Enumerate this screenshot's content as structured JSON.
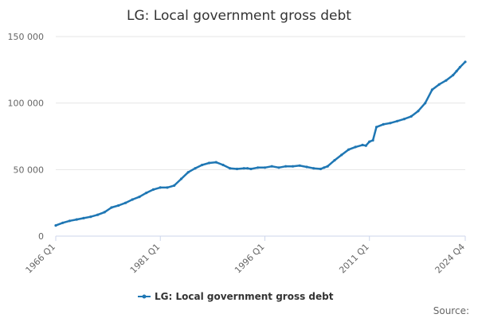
{
  "chart_data": {
    "type": "line",
    "title": "LG: Local government gross debt",
    "xlabel": "",
    "ylabel": "",
    "x_ticks": [
      "1966 Q1",
      "1981 Q1",
      "1996 Q1",
      "2011 Q1",
      "2024 Q4"
    ],
    "y_ticks": [
      "0",
      "50 000",
      "100 000",
      "150 000"
    ],
    "ylim": [
      0,
      150000
    ],
    "grid": true,
    "legend_position": "bottom",
    "source_label": "Source:",
    "colors": {
      "series": "#1f77b4",
      "grid": "#e6e6e6",
      "axis": "#ccd6eb"
    },
    "series": [
      {
        "name": "LG: Local government gross debt",
        "x": [
          "1966 Q1",
          "1967 Q1",
          "1968 Q1",
          "1969 Q1",
          "1970 Q1",
          "1971 Q1",
          "1972 Q1",
          "1973 Q1",
          "1974 Q1",
          "1975 Q1",
          "1976 Q1",
          "1977 Q1",
          "1978 Q1",
          "1979 Q1",
          "1980 Q1",
          "1981 Q1",
          "1982 Q1",
          "1983 Q1",
          "1984 Q1",
          "1985 Q1",
          "1986 Q1",
          "1987 Q1",
          "1988 Q1",
          "1989 Q1",
          "1990 Q1",
          "1991 Q1",
          "1992 Q1",
          "1993 Q1",
          "1993 Q3",
          "1994 Q1",
          "1995 Q1",
          "1996 Q1",
          "1997 Q1",
          "1998 Q1",
          "1999 Q1",
          "2000 Q1",
          "2001 Q1",
          "2002 Q1",
          "2003 Q1",
          "2004 Q1",
          "2004 Q3",
          "2005 Q1",
          "2006 Q1",
          "2007 Q1",
          "2008 Q1",
          "2009 Q1",
          "2010 Q1",
          "2010 Q3",
          "2011 Q1",
          "2011 Q3",
          "2012 Q1",
          "2013 Q1",
          "2014 Q1",
          "2015 Q1",
          "2016 Q1",
          "2017 Q1",
          "2018 Q1",
          "2019 Q1",
          "2020 Q1",
          "2021 Q1",
          "2022 Q1",
          "2023 Q1",
          "2023 Q3",
          "2024 Q1",
          "2024 Q4"
        ],
        "values": [
          8000,
          10000,
          11500,
          12500,
          13500,
          14500,
          16000,
          18000,
          21500,
          23000,
          25000,
          27500,
          29500,
          32500,
          35000,
          36500,
          36500,
          38000,
          43000,
          48000,
          51000,
          53500,
          55000,
          55500,
          53500,
          51000,
          50500,
          51000,
          51000,
          50500,
          51500,
          51500,
          52500,
          51500,
          52500,
          52500,
          53000,
          52000,
          51000,
          50500,
          51500,
          52500,
          57000,
          61000,
          65000,
          67000,
          68500,
          68000,
          71000,
          72000,
          82000,
          84000,
          85000,
          86500,
          88000,
          90000,
          94000,
          100000,
          110000,
          114000,
          117000,
          121000,
          124000,
          127000,
          131000
        ]
      }
    ]
  }
}
